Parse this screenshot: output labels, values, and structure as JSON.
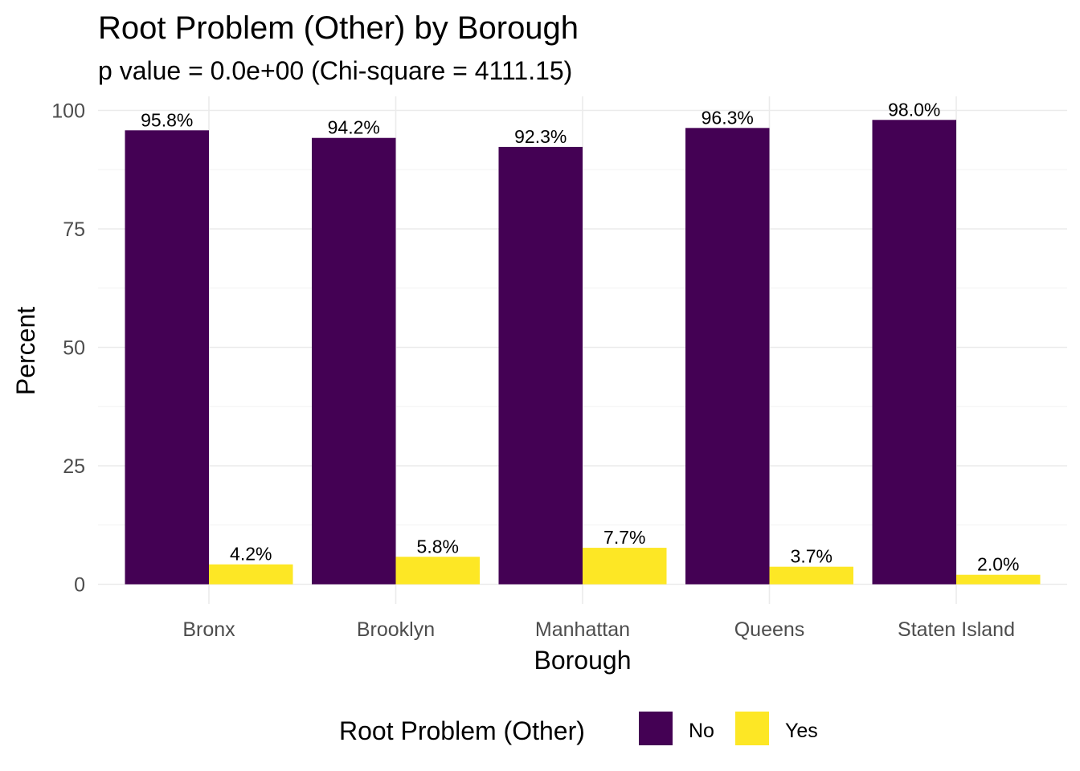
{
  "chart_data": {
    "type": "bar",
    "title": "Root Problem (Other) by Borough",
    "subtitle": "p value = 0.0e+00 (Chi-square = 4111.15)",
    "xlabel": "Borough",
    "ylabel": "Percent",
    "ylim": [
      0,
      100
    ],
    "yticks": [
      0,
      25,
      50,
      75,
      100
    ],
    "ytick_labels": [
      "0",
      "25",
      "50",
      "75",
      "100"
    ],
    "grid": true,
    "legend_position": "bottom",
    "legend_title": "Root Problem (Other)",
    "categories": [
      "Bronx",
      "Brooklyn",
      "Manhattan",
      "Queens",
      "Staten Island"
    ],
    "series": [
      {
        "name": "No",
        "color": "#440154",
        "values": [
          95.8,
          94.2,
          92.3,
          96.3,
          98.0
        ],
        "labels": [
          "95.8%",
          "94.2%",
          "92.3%",
          "96.3%",
          "98.0%"
        ]
      },
      {
        "name": "Yes",
        "color": "#FDE725",
        "values": [
          4.2,
          5.8,
          7.7,
          3.7,
          2.0
        ],
        "labels": [
          "4.2%",
          "5.8%",
          "7.7%",
          "3.7%",
          "2.0%"
        ]
      }
    ]
  }
}
